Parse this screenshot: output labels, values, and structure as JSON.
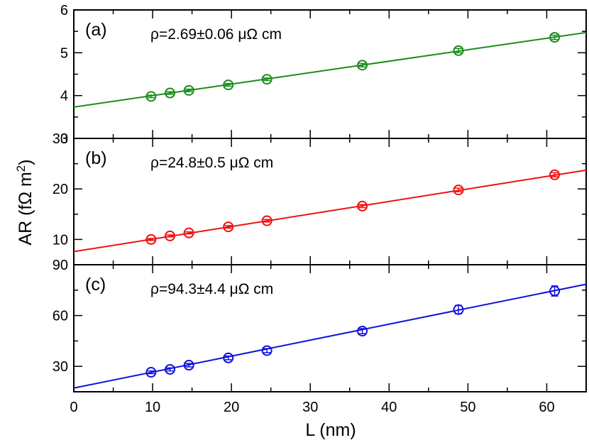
{
  "chart_data": [
    {
      "type": "scatter",
      "panel_label": "(a)",
      "annotation": "ρ=2.69±0.06 μΩ cm",
      "color": "#1a8c1a",
      "ylim": [
        3,
        6
      ],
      "yticks": [
        3,
        4,
        5,
        6
      ],
      "yticks_minor": [
        3.5,
        4.5,
        5.5
      ],
      "x": [
        9.8,
        12.2,
        14.6,
        19.6,
        24.5,
        36.6,
        48.8,
        61.0
      ],
      "y": [
        3.98,
        4.06,
        4.12,
        4.25,
        4.38,
        4.71,
        5.05,
        5.36
      ],
      "yerr": [
        0.03,
        0.03,
        0.03,
        0.03,
        0.03,
        0.04,
        0.05,
        0.05
      ],
      "fit": {
        "slope": 0.02678,
        "intercept": 3.732
      }
    },
    {
      "type": "scatter",
      "panel_label": "(b)",
      "annotation": "ρ=24.8±0.5 μΩ cm",
      "color": "#ee1111",
      "ylim": [
        5,
        30
      ],
      "yticks": [
        10,
        20,
        30
      ],
      "yticks_minor": [
        5,
        15,
        25
      ],
      "x": [
        9.8,
        12.2,
        14.6,
        19.6,
        24.5,
        36.6,
        48.8,
        61.0
      ],
      "y": [
        10.0,
        10.7,
        11.3,
        12.5,
        13.7,
        16.6,
        19.8,
        22.8
      ],
      "yerr": [
        0.2,
        0.2,
        0.2,
        0.25,
        0.25,
        0.3,
        0.35,
        0.4
      ],
      "fit": {
        "slope": 0.248,
        "intercept": 7.6
      }
    },
    {
      "type": "scatter",
      "panel_label": "(c)",
      "annotation": "ρ=94.3±4.4 μΩ cm",
      "color": "#1111dd",
      "ylim": [
        15,
        90
      ],
      "yticks": [
        30,
        60,
        90
      ],
      "yticks_minor": [
        15,
        45,
        75
      ],
      "x": [
        9.8,
        12.2,
        14.6,
        19.6,
        24.5,
        36.6,
        48.8,
        61.0
      ],
      "y": [
        26.5,
        28.2,
        30.7,
        35.0,
        39.3,
        50.8,
        63.5,
        74.5
      ],
      "yerr": [
        0.8,
        0.9,
        1.0,
        1.1,
        1.2,
        1.5,
        2.5,
        3.0
      ],
      "fit": {
        "slope": 0.943,
        "intercept": 17.2
      }
    }
  ],
  "xaxis": {
    "label": "L (nm)",
    "xlim": [
      0,
      65
    ],
    "ticks": [
      0,
      10,
      20,
      30,
      40,
      50,
      60
    ],
    "ticks_minor": [
      5,
      15,
      25,
      35,
      45,
      55
    ]
  },
  "yaxis": {
    "label_main": "AR (fΩ m",
    "label_sup": "2",
    "label_close": ")"
  }
}
